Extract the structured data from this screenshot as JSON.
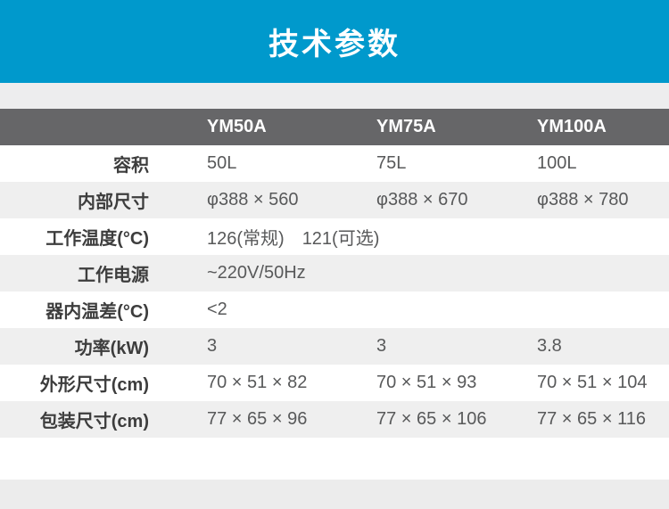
{
  "banner": {
    "title": "技术参数"
  },
  "colors": {
    "banner_bg": "#0099cc",
    "header_bg": "#666668",
    "row_alt_bg": "#efefef",
    "strip_bg": "#ededee",
    "label_color": "#3d3d3d",
    "value_color": "#58595a"
  },
  "table": {
    "columns": [
      "",
      "YM50A",
      "YM75A",
      "YM100A"
    ],
    "rows": [
      {
        "label": "容积",
        "values": [
          "50L",
          "75L",
          "100L"
        ]
      },
      {
        "label": "内部尺寸",
        "values": [
          "φ388 × 560",
          "φ388 × 670",
          "φ388 × 780"
        ]
      },
      {
        "label": "工作温度(°C)",
        "values": [
          "126(常规)　121(可选)",
          "",
          ""
        ]
      },
      {
        "label": "工作电源",
        "values": [
          "~220V/50Hz",
          "",
          ""
        ]
      },
      {
        "label": "器内温差(°C)",
        "values": [
          "<2",
          "",
          ""
        ]
      },
      {
        "label": "功率(kW)",
        "values": [
          "3",
          "3",
          "3.8"
        ]
      },
      {
        "label": "外形尺寸(cm)",
        "values": [
          "70 × 51 × 82",
          "70 × 51 × 93",
          "70 × 51 × 104"
        ]
      },
      {
        "label": "包装尺寸(cm)",
        "values": [
          "77 × 65 × 96",
          "77 × 65 × 106",
          "77 × 65 × 116"
        ]
      }
    ]
  }
}
